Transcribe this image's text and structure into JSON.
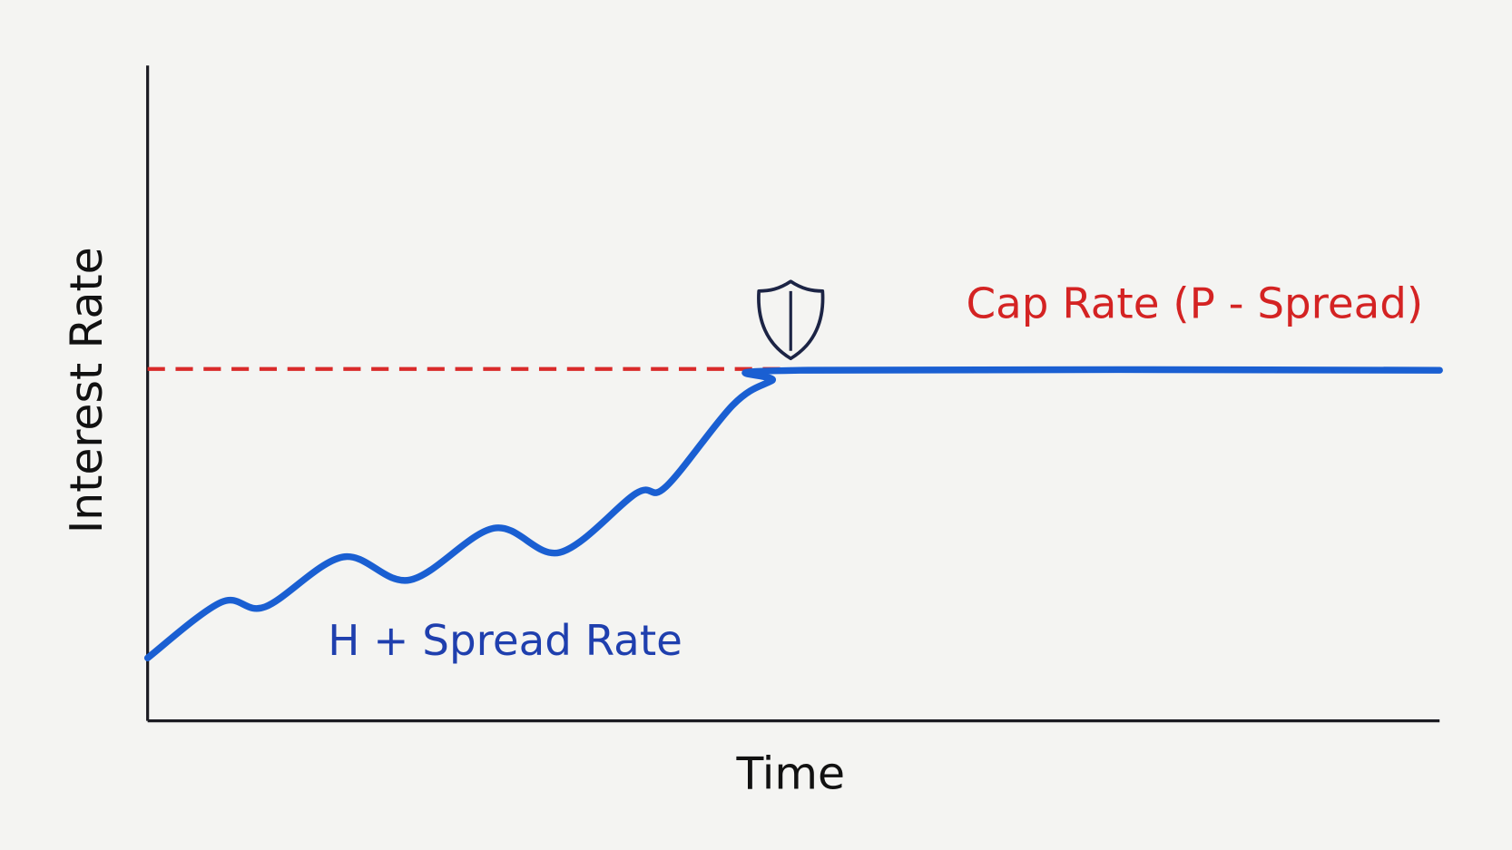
{
  "chart_data": {
    "type": "line",
    "x_label": "Time",
    "y_label": "Interest Rate",
    "xlim": [
      0,
      100
    ],
    "ylim": [
      0,
      100
    ],
    "series": [
      {
        "name": "H + Spread Rate",
        "color": "#1a5fd2",
        "dashed": false,
        "x": [
          0,
          5.7,
          9.1,
          15.1,
          20.3,
          26.8,
          31.9,
          37.8,
          40.1,
          45.3,
          48.3,
          50.5,
          100
        ],
        "values": [
          9.6,
          18.1,
          17.4,
          25,
          21.5,
          29.4,
          25.7,
          34.7,
          35.7,
          48.2,
          51.9,
          53.5,
          53.5
        ]
      },
      {
        "name": "Cap Rate (P - Spread)",
        "color": "#d92a2a",
        "dashed": true,
        "x": [
          0,
          49.8
        ],
        "values": [
          53.7,
          53.7
        ]
      }
    ]
  }
}
